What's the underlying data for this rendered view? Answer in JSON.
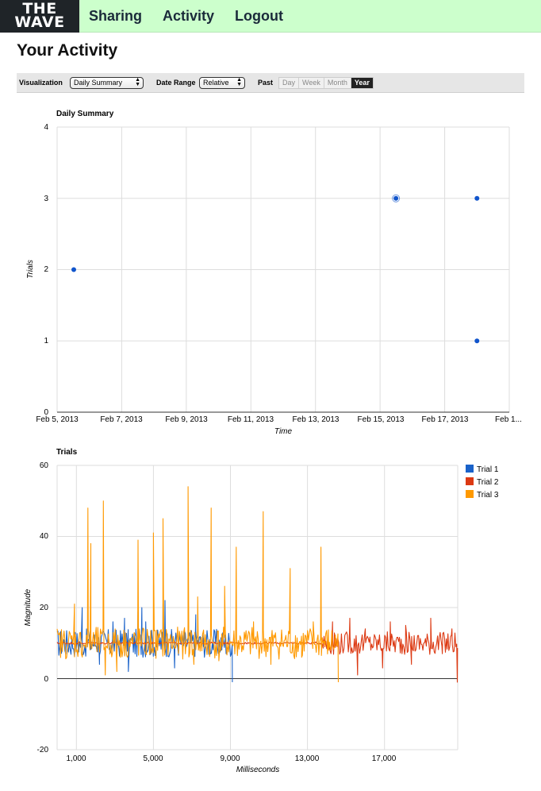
{
  "header": {
    "logo_line1": "THE",
    "logo_line2": "WAVE",
    "nav": [
      "Sharing",
      "Activity",
      "Logout"
    ]
  },
  "page_title": "Your Activity",
  "toolbar": {
    "visualization_label": "Visualization",
    "visualization_value": "Daily Summary",
    "date_range_label": "Date Range",
    "date_range_value": "Relative",
    "past_label": "Past",
    "past_options": [
      "Day",
      "Week",
      "Month",
      "Year"
    ],
    "past_selected": "Year"
  },
  "chart_data": [
    {
      "type": "scatter",
      "title": "Daily Summary",
      "xlabel": "Time",
      "ylabel": "Trials",
      "x_ticks": [
        "Feb 5, 2013",
        "Feb 7, 2013",
        "Feb 9, 2013",
        "Feb 11, 2013",
        "Feb 13, 2013",
        "Feb 15, 2013",
        "Feb 17, 2013",
        "Feb 1..."
      ],
      "y_ticks": [
        "0",
        "1",
        "2",
        "3",
        "4"
      ],
      "xlim": [
        "2013-02-05",
        "2013-02-19"
      ],
      "ylim": [
        0,
        4
      ],
      "grid": true,
      "color": "#1155cc",
      "points": [
        {
          "x": "2013-02-05",
          "y": 2
        },
        {
          "x": "2013-02-15",
          "y": 3,
          "highlighted": true
        },
        {
          "x": "2013-02-18",
          "y": 3
        },
        {
          "x": "2013-02-18",
          "y": 1
        }
      ]
    },
    {
      "type": "line",
      "title": "Trials",
      "xlabel": "Milliseconds",
      "ylabel": "Magnitude",
      "x_ticks": [
        "1,000",
        "5,000",
        "9,000",
        "13,000",
        "17,000"
      ],
      "y_ticks": [
        "60",
        "40",
        "20",
        "0",
        "-20"
      ],
      "xlim": [
        0,
        20800
      ],
      "ylim": [
        -20,
        60
      ],
      "grid": true,
      "legend_position": "right",
      "series": [
        {
          "name": "Trial 1",
          "color": "#1a62c9",
          "end_ms": 9100,
          "baseline": 10,
          "spikes": [
            [
              1300,
              20
            ],
            [
              2200,
              4
            ],
            [
              2900,
              16
            ],
            [
              3500,
              17
            ],
            [
              3700,
              2
            ],
            [
              4200,
              19
            ],
            [
              4400,
              20
            ],
            [
              4600,
              16
            ],
            [
              5000,
              7
            ],
            [
              5500,
              21
            ],
            [
              5600,
              22
            ],
            [
              6100,
              3
            ],
            [
              6800,
              20
            ],
            [
              7200,
              18
            ],
            [
              7600,
              9
            ],
            [
              9100,
              -1
            ]
          ]
        },
        {
          "name": "Trial 2",
          "color": "#dc3912",
          "end_ms": 20800,
          "baseline": 10,
          "spikes": [
            [
              14300,
              16
            ],
            [
              15200,
              17
            ],
            [
              15600,
              1
            ],
            [
              16000,
              14
            ],
            [
              16900,
              3
            ],
            [
              17300,
              16
            ],
            [
              18100,
              15
            ],
            [
              18400,
              4
            ],
            [
              19400,
              17
            ],
            [
              20000,
              7
            ],
            [
              20500,
              14
            ],
            [
              20780,
              -1
            ]
          ]
        },
        {
          "name": "Trial 3",
          "color": "#ff9900",
          "end_ms": 14600,
          "baseline": 10,
          "spikes": [
            [
              900,
              21
            ],
            [
              1600,
              48
            ],
            [
              1750,
              38
            ],
            [
              2400,
              50
            ],
            [
              2500,
              1
            ],
            [
              3100,
              2
            ],
            [
              4200,
              39
            ],
            [
              5000,
              41
            ],
            [
              5500,
              45
            ],
            [
              6000,
              9
            ],
            [
              6800,
              54
            ],
            [
              7100,
              4
            ],
            [
              7300,
              23
            ],
            [
              8000,
              48
            ],
            [
              8400,
              5
            ],
            [
              8700,
              26
            ],
            [
              9300,
              37
            ],
            [
              10200,
              16
            ],
            [
              10700,
              47
            ],
            [
              11100,
              4
            ],
            [
              12100,
              31
            ],
            [
              12700,
              6
            ],
            [
              13300,
              16
            ],
            [
              13700,
              37
            ],
            [
              14100,
              8
            ],
            [
              14600,
              -1
            ]
          ]
        }
      ]
    }
  ]
}
